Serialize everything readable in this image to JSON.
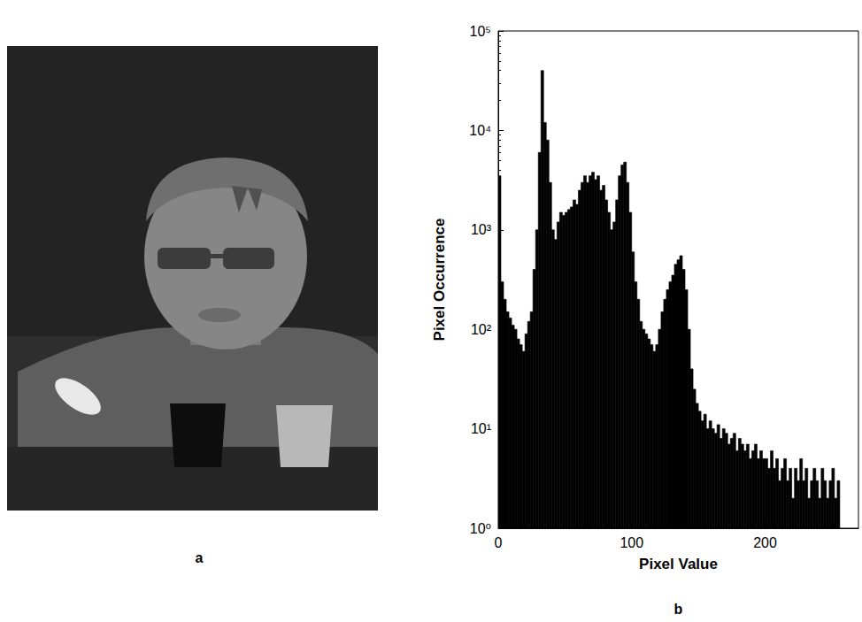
{
  "image": {
    "label": "a"
  },
  "chart_data": {
    "type": "histogram",
    "panel_label": "b",
    "x_label": "Pixel Value",
    "y_label": "Pixel Occurrence",
    "color": "#000000",
    "bins": [
      0,
      2,
      4,
      6,
      8,
      10,
      12,
      14,
      16,
      18,
      20,
      22,
      24,
      26,
      28,
      30,
      32,
      34,
      36,
      38,
      40,
      42,
      44,
      46,
      48,
      50,
      52,
      54,
      56,
      58,
      60,
      62,
      64,
      66,
      68,
      70,
      72,
      74,
      76,
      78,
      80,
      82,
      84,
      86,
      88,
      90,
      92,
      94,
      96,
      98,
      100,
      102,
      104,
      106,
      108,
      110,
      112,
      114,
      116,
      118,
      120,
      122,
      124,
      126,
      128,
      130,
      132,
      134,
      136,
      138,
      140,
      142,
      144,
      146,
      148,
      150,
      152,
      154,
      156,
      158,
      160,
      162,
      164,
      166,
      168,
      170,
      172,
      174,
      176,
      178,
      180,
      182,
      184,
      186,
      188,
      190,
      192,
      194,
      196,
      198,
      200,
      202,
      204,
      206,
      208,
      210,
      212,
      214,
      216,
      218,
      220,
      222,
      224,
      226,
      228,
      230,
      232,
      234,
      236,
      238,
      240,
      242,
      244,
      246,
      248,
      250,
      252,
      254,
      256
    ],
    "values": [
      3500,
      300,
      200,
      150,
      130,
      110,
      100,
      80,
      70,
      60,
      90,
      120,
      150,
      400,
      1000,
      6000,
      40000,
      12000,
      8000,
      3000,
      1000,
      800,
      1200,
      1500,
      1400,
      1500,
      1600,
      1700,
      2000,
      1800,
      2500,
      3000,
      3500,
      3000,
      3500,
      3800,
      3200,
      3500,
      2500,
      2800,
      2000,
      1500,
      1000,
      1200,
      2000,
      3500,
      4500,
      4800,
      3000,
      1500,
      600,
      300,
      200,
      120,
      100,
      90,
      80,
      70,
      60,
      70,
      100,
      150,
      200,
      250,
      300,
      350,
      450,
      500,
      550,
      400,
      250,
      100,
      40,
      25,
      18,
      15,
      12,
      14,
      10,
      12,
      10,
      9,
      11,
      8,
      10,
      9,
      7,
      8,
      9,
      6,
      8,
      7,
      6,
      7,
      5,
      6,
      7,
      5,
      6,
      5,
      5,
      4,
      6,
      4,
      5,
      3,
      4,
      5,
      3,
      4,
      2,
      4,
      3,
      5,
      3,
      4,
      2,
      3,
      4,
      3,
      2,
      4,
      3,
      2,
      3,
      4,
      2,
      3
    ],
    "xlim": [
      0,
      270
    ],
    "xticks": [
      0,
      100,
      200
    ],
    "ylim": [
      1,
      100000
    ],
    "yticks": [
      {
        "value": 1,
        "label": "10⁰"
      },
      {
        "value": 10,
        "label": "10¹"
      },
      {
        "value": 100,
        "label": "10²"
      },
      {
        "value": 1000,
        "label": "10³"
      },
      {
        "value": 10000,
        "label": "10⁴"
      },
      {
        "value": 100000,
        "label": "10⁵"
      }
    ],
    "log": "y",
    "grid": false
  }
}
